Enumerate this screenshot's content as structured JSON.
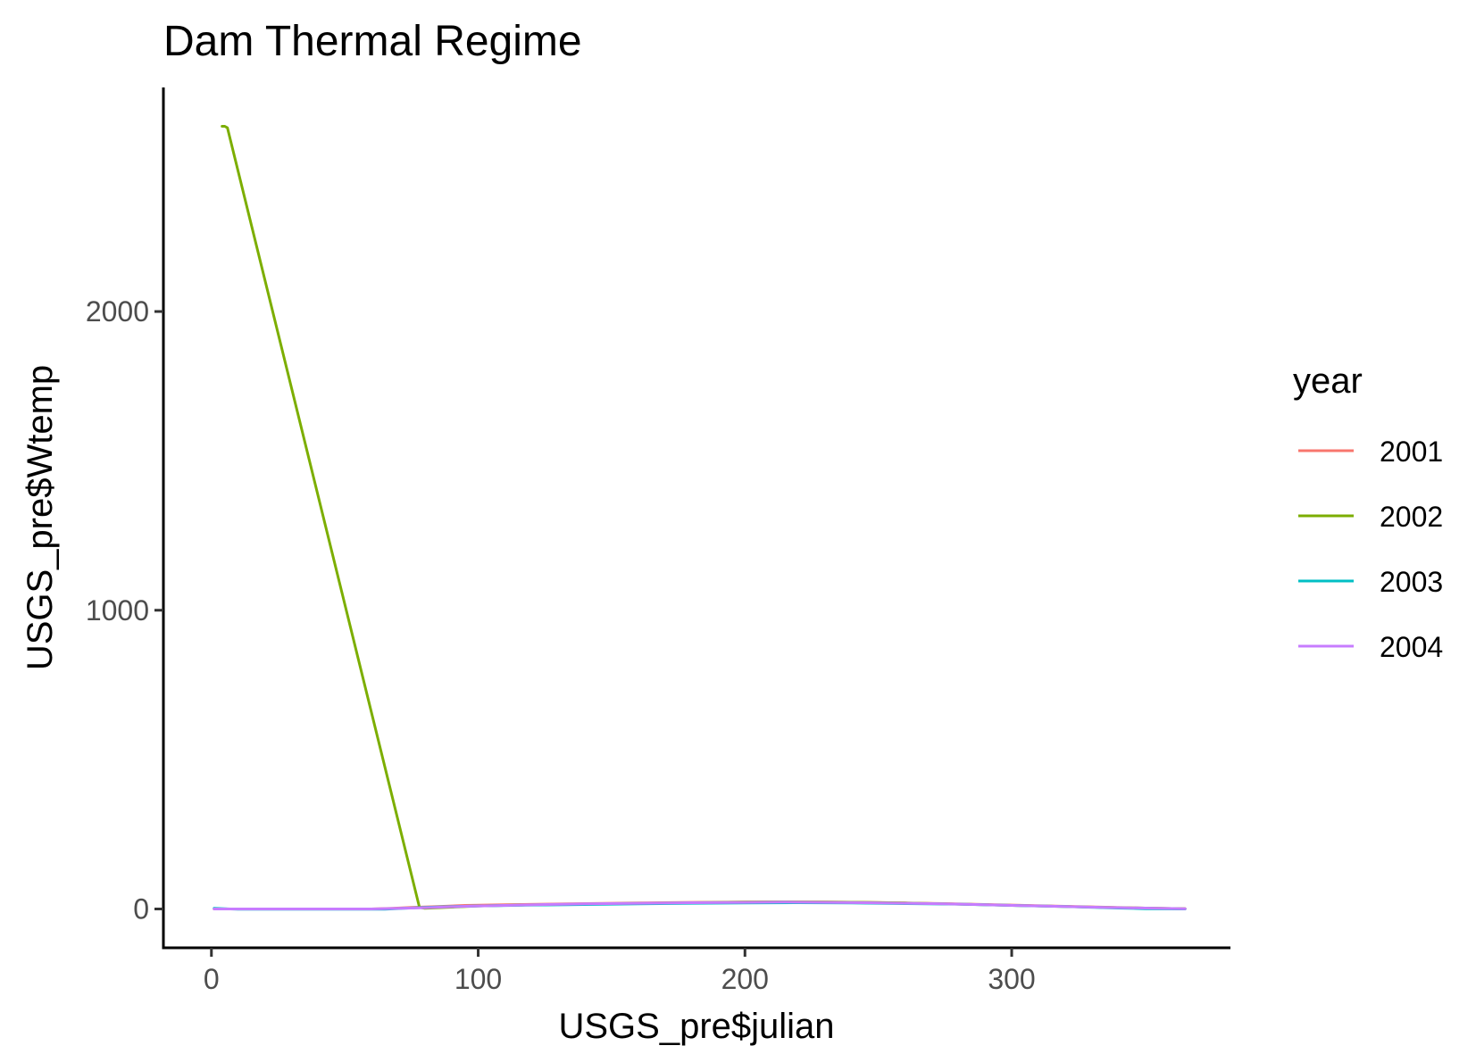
{
  "chart_data": {
    "type": "line",
    "title": "Dam Thermal Regime",
    "xlabel": "USGS_pre$julian",
    "ylabel": "USGS_pre$Wtemp",
    "xlim": [
      -18,
      382
    ],
    "ylim": [
      -130,
      2750
    ],
    "x_ticks": [
      0,
      100,
      200,
      300
    ],
    "y_ticks": [
      0,
      1000,
      2000
    ],
    "x_tick_labels": [
      "0",
      "100",
      "200",
      "300"
    ],
    "y_tick_labels": [
      "0",
      "1000",
      "2000"
    ],
    "grid": false,
    "legend": {
      "title": "year",
      "position": "right"
    },
    "series": [
      {
        "name": "2001",
        "color": "#F8766D",
        "x": [
          1,
          30,
          60,
          68,
          75,
          85,
          95,
          110,
          125,
          140,
          160,
          180,
          200,
          215,
          230,
          245,
          260,
          275,
          290,
          305,
          320,
          335,
          350,
          365
        ],
        "y": [
          0,
          0,
          0,
          2,
          5,
          8,
          12,
          14,
          16,
          18,
          20,
          22,
          23,
          24,
          23,
          22,
          20,
          18,
          15,
          12,
          9,
          6,
          3,
          1
        ]
      },
      {
        "name": "2002",
        "color": "#7CAE00",
        "x": [
          4,
          5,
          6,
          78,
          80,
          90,
          100,
          115,
          130,
          145,
          160,
          180,
          200,
          215,
          230,
          245,
          260,
          275,
          290,
          305,
          320,
          335,
          350,
          365
        ],
        "y": [
          2620,
          2620,
          2615,
          5,
          2,
          6,
          10,
          13,
          15,
          17,
          19,
          21,
          23,
          24,
          23,
          22,
          20,
          17,
          14,
          11,
          8,
          5,
          3,
          1
        ]
      },
      {
        "name": "2003",
        "color": "#00BFC4",
        "x": [
          1,
          10,
          30,
          50,
          65,
          72,
          80,
          90,
          100,
          120,
          140,
          160,
          180,
          200,
          220,
          240,
          260,
          280,
          300,
          320,
          340,
          350,
          365
        ],
        "y": [
          2,
          -1,
          -1,
          -1,
          -1,
          2,
          5,
          8,
          10,
          13,
          15,
          17,
          19,
          20,
          21,
          20,
          18,
          16,
          12,
          8,
          3,
          1,
          0
        ]
      },
      {
        "name": "2004",
        "color": "#C77CFF",
        "x": [
          1,
          30,
          60,
          80,
          95,
          110,
          125,
          140,
          160,
          180,
          200,
          215,
          230,
          245,
          260,
          275,
          290,
          305,
          320,
          335,
          350,
          365
        ],
        "y": [
          0,
          0,
          0,
          4,
          9,
          12,
          15,
          17,
          19,
          21,
          22,
          23,
          22,
          21,
          19,
          17,
          14,
          11,
          8,
          5,
          3,
          1
        ]
      }
    ]
  }
}
